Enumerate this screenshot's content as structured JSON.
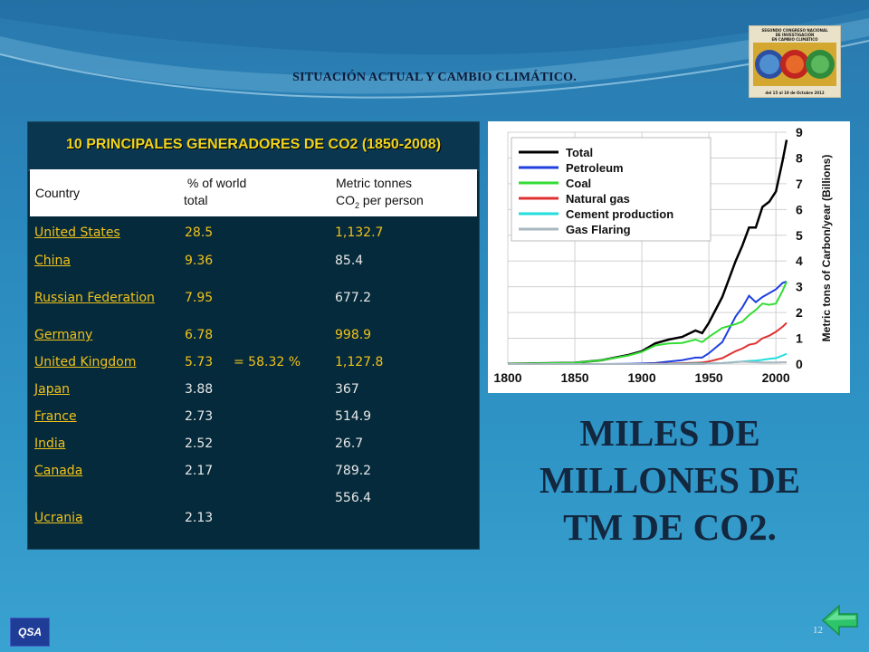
{
  "slide": {
    "title": "SITUACIÓN ACTUAL Y CAMBIO CLIMÁTICO.",
    "page_number": "12",
    "big_text": [
      "MILES DE",
      "MILLONES DE",
      "TM DE CO2."
    ]
  },
  "logo": {
    "text_lines": [
      "SEGUNDO CONGRESO NACIONAL",
      "DE INVESTIGACIÓN",
      "EN CAMBIO CLIMÁTICO"
    ],
    "date": "del 15 al 19 de Octubre 2012"
  },
  "qsa_label": "QSA",
  "table": {
    "title": "10 PRINCIPALES GENERADORES DE CO2 (1850-2008)",
    "headers": {
      "country": "Country",
      "pct_line1": "% of world",
      "pct_line2": "total",
      "metric_line1": "Metric tonnes",
      "metric_line2_prefix": "CO",
      "metric_line2_sub": "2",
      "metric_line2_suffix": " per person"
    },
    "summary": "= 58.32 %",
    "rows": [
      {
        "country": "United States",
        "pct": "28.5",
        "metric": "1,132.7"
      },
      {
        "country": "China",
        "pct": "9.36",
        "metric": "85.4"
      },
      {
        "country": "Russian Federation",
        "pct": "7.95",
        "metric": "677.2"
      },
      {
        "country": "Germany",
        "pct": "6.78",
        "metric": "998.9"
      },
      {
        "country": "United Kingdom",
        "pct": "5.73",
        "metric": "1,127.8"
      },
      {
        "country": "Japan",
        "pct": "3.88",
        "metric": "367"
      },
      {
        "country": "France",
        "pct": "2.73",
        "metric": "514.9"
      },
      {
        "country": "India",
        "pct": "2.52",
        "metric": "26.7"
      },
      {
        "country": "Canada",
        "pct": "2.17",
        "metric": "789.2"
      },
      {
        "country": "Ucrania",
        "pct": "2.13",
        "metric": "556.4"
      }
    ]
  },
  "chart_data": {
    "type": "line",
    "title": "",
    "xlabel": "",
    "ylabel": "Metric tons of Carbon/year (Billions)",
    "x_ticks": [
      "1800",
      "1850",
      "1900",
      "1950",
      "2000"
    ],
    "y_ticks": [
      "0",
      "1",
      "2",
      "3",
      "4",
      "5",
      "6",
      "7",
      "8",
      "9"
    ],
    "xlim": [
      1800,
      2008
    ],
    "ylim": [
      0,
      9
    ],
    "legend_position": "top-left",
    "x": [
      1800,
      1850,
      1870,
      1890,
      1900,
      1910,
      1920,
      1930,
      1940,
      1945,
      1950,
      1960,
      1970,
      1975,
      1980,
      1985,
      1990,
      1995,
      2000,
      2005,
      2008
    ],
    "series": [
      {
        "name": "Total",
        "color": "#000000",
        "values": [
          0.01,
          0.05,
          0.15,
          0.35,
          0.5,
          0.8,
          0.95,
          1.05,
          1.3,
          1.2,
          1.6,
          2.6,
          4.0,
          4.6,
          5.3,
          5.3,
          6.1,
          6.3,
          6.7,
          7.9,
          8.7
        ]
      },
      {
        "name": "Petroleum",
        "color": "#1f3fe0",
        "values": [
          0,
          0,
          0,
          0.01,
          0.02,
          0.04,
          0.1,
          0.15,
          0.25,
          0.25,
          0.42,
          0.85,
          1.85,
          2.2,
          2.65,
          2.4,
          2.6,
          2.75,
          2.9,
          3.15,
          3.2
        ]
      },
      {
        "name": "Coal",
        "color": "#33dd33",
        "values": [
          0.01,
          0.05,
          0.15,
          0.33,
          0.47,
          0.72,
          0.8,
          0.82,
          0.95,
          0.85,
          1.05,
          1.4,
          1.55,
          1.65,
          1.9,
          2.1,
          2.35,
          2.3,
          2.35,
          2.85,
          3.2
        ]
      },
      {
        "name": "Natural gas",
        "color": "#e03030",
        "values": [
          0,
          0,
          0,
          0,
          0,
          0.01,
          0.02,
          0.03,
          0.05,
          0.06,
          0.1,
          0.23,
          0.5,
          0.6,
          0.75,
          0.8,
          1.0,
          1.1,
          1.25,
          1.45,
          1.6
        ]
      },
      {
        "name": "Cement production",
        "color": "#22dddd",
        "values": [
          0,
          0,
          0,
          0,
          0,
          0,
          0.01,
          0.01,
          0.02,
          0.02,
          0.02,
          0.04,
          0.08,
          0.1,
          0.12,
          0.13,
          0.16,
          0.2,
          0.23,
          0.33,
          0.4
        ]
      },
      {
        "name": "Gas Flaring",
        "color": "#aab8c0",
        "values": [
          0,
          0,
          0,
          0,
          0,
          0,
          0,
          0,
          0,
          0,
          0.02,
          0.04,
          0.07,
          0.09,
          0.08,
          0.07,
          0.06,
          0.06,
          0.06,
          0.07,
          0.07
        ]
      }
    ]
  }
}
